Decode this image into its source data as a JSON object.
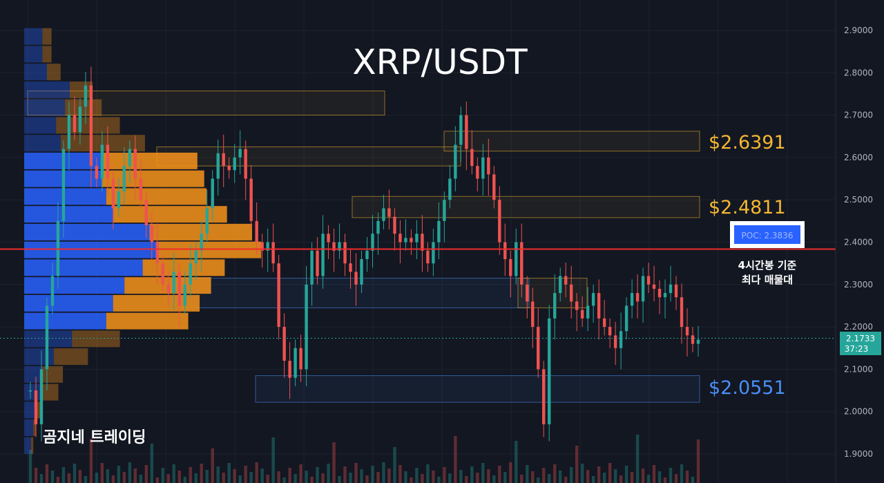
{
  "colors": {
    "background": "#131722",
    "grid": "#1e222d",
    "up": "#26a69a",
    "down": "#ef5350",
    "poc_line": "#ef2b2b",
    "resistance_label": "#f5b731",
    "support_label": "#4a8ff5",
    "vp_blue": "#2962ff",
    "vp_orange": "#f7931a"
  },
  "chart_data": {
    "type": "candlestick",
    "title": "XRP/USDT",
    "watermark": "곰지네 트레이딩",
    "ylim": [
      1.88,
      2.92
    ],
    "y_ticks": [
      "2.9000",
      "2.8000",
      "2.7000",
      "2.6000",
      "2.5000",
      "2.4000",
      "2.3000",
      "2.2000",
      "2.1000",
      "2.0000",
      "1.9000"
    ],
    "current_price": {
      "value": 2.1733,
      "label": "2.1733",
      "countdown": "37:23"
    },
    "poc": {
      "value": 2.3836,
      "label": "POC: 2.3836",
      "note_line1": "4시간봉 기준",
      "note_line2": "최다 매물대"
    },
    "levels": [
      {
        "value": 2.6391,
        "label": "$2.6391",
        "type": "resistance",
        "zone": [
          2.615,
          2.662
        ]
      },
      {
        "value": 2.4811,
        "label": "$2.4811",
        "type": "resistance",
        "zone": [
          2.458,
          2.508
        ]
      },
      {
        "value": 2.0551,
        "label": "$2.0551",
        "type": "support",
        "zone": [
          2.022,
          2.085
        ]
      }
    ],
    "extra_zones": [
      {
        "type": "resistance",
        "zone": [
          2.7,
          2.757
        ],
        "from": 0.0,
        "to": 0.47
      },
      {
        "type": "resistance",
        "zone": [
          2.58,
          2.625
        ],
        "from": 0.17,
        "to": 0.57
      },
      {
        "type": "support",
        "zone": [
          2.245,
          2.315
        ],
        "from": 0.2,
        "to": 0.66
      }
    ],
    "volume_profile": [
      {
        "price": 2.885,
        "total": 0.12,
        "up": 0.08
      },
      {
        "price": 2.843,
        "total": 0.12,
        "up": 0.08
      },
      {
        "price": 2.801,
        "total": 0.16,
        "up": 0.1
      },
      {
        "price": 2.759,
        "total": 0.3,
        "up": 0.2
      },
      {
        "price": 2.717,
        "total": 0.34,
        "up": 0.18
      },
      {
        "price": 2.675,
        "total": 0.42,
        "up": 0.14
      },
      {
        "price": 2.633,
        "total": 0.53,
        "up": 0.16
      },
      {
        "price": 2.591,
        "total": 0.76,
        "up": 0.34
      },
      {
        "price": 2.549,
        "total": 0.79,
        "up": 0.34
      },
      {
        "price": 2.507,
        "total": 0.8,
        "up": 0.36
      },
      {
        "price": 2.465,
        "total": 0.89,
        "up": 0.39
      },
      {
        "price": 2.423,
        "total": 1.0,
        "up": 0.55
      },
      {
        "price": 2.381,
        "total": 1.04,
        "up": 0.58
      },
      {
        "price": 2.339,
        "total": 0.88,
        "up": 0.52
      },
      {
        "price": 2.297,
        "total": 0.82,
        "up": 0.44
      },
      {
        "price": 2.255,
        "total": 0.77,
        "up": 0.39
      },
      {
        "price": 2.213,
        "total": 0.72,
        "up": 0.36
      },
      {
        "price": 2.171,
        "total": 0.42,
        "up": 0.21
      },
      {
        "price": 2.129,
        "total": 0.28,
        "up": 0.13
      },
      {
        "price": 2.087,
        "total": 0.17,
        "up": 0.08
      },
      {
        "price": 2.045,
        "total": 0.15,
        "up": 0.07
      },
      {
        "price": 2.003,
        "total": 0.07,
        "up": 0.05
      },
      {
        "price": 1.961,
        "total": 0.05,
        "up": 0.04
      },
      {
        "price": 1.919,
        "total": 0.04,
        "up": 0.03
      }
    ],
    "candles_closes": [
      2.05,
      1.97,
      2.1,
      2.25,
      2.32,
      2.45,
      2.62,
      2.7,
      2.66,
      2.72,
      2.77,
      2.58,
      2.55,
      2.63,
      2.55,
      2.48,
      2.52,
      2.58,
      2.62,
      2.55,
      2.5,
      2.44,
      2.4,
      2.35,
      2.3,
      2.28,
      2.33,
      2.25,
      2.3,
      2.35,
      2.38,
      2.42,
      2.48,
      2.55,
      2.61,
      2.58,
      2.57,
      2.6,
      2.62,
      2.55,
      2.45,
      2.4,
      2.38,
      2.4,
      2.35,
      2.2,
      2.12,
      2.08,
      2.15,
      2.1,
      2.3,
      2.38,
      2.32,
      2.42,
      2.4,
      2.38,
      2.4,
      2.35,
      2.33,
      2.3,
      2.36,
      2.38,
      2.42,
      2.45,
      2.48,
      2.46,
      2.42,
      2.4,
      2.41,
      2.4,
      2.42,
      2.38,
      2.35,
      2.4,
      2.45,
      2.5,
      2.55,
      2.63,
      2.7,
      2.62,
      2.58,
      2.55,
      2.6,
      2.56,
      2.5,
      2.4,
      2.36,
      2.32,
      2.4,
      2.3,
      2.26,
      2.2,
      2.1,
      1.97,
      2.22,
      2.28,
      2.32,
      2.3,
      2.26,
      2.24,
      2.22,
      2.25,
      2.28,
      2.22,
      2.2,
      2.18,
      2.15,
      2.19,
      2.25,
      2.28,
      2.26,
      2.32,
      2.3,
      2.29,
      2.27,
      2.28,
      2.3,
      2.27,
      2.2,
      2.18,
      2.16,
      2.17
    ]
  }
}
